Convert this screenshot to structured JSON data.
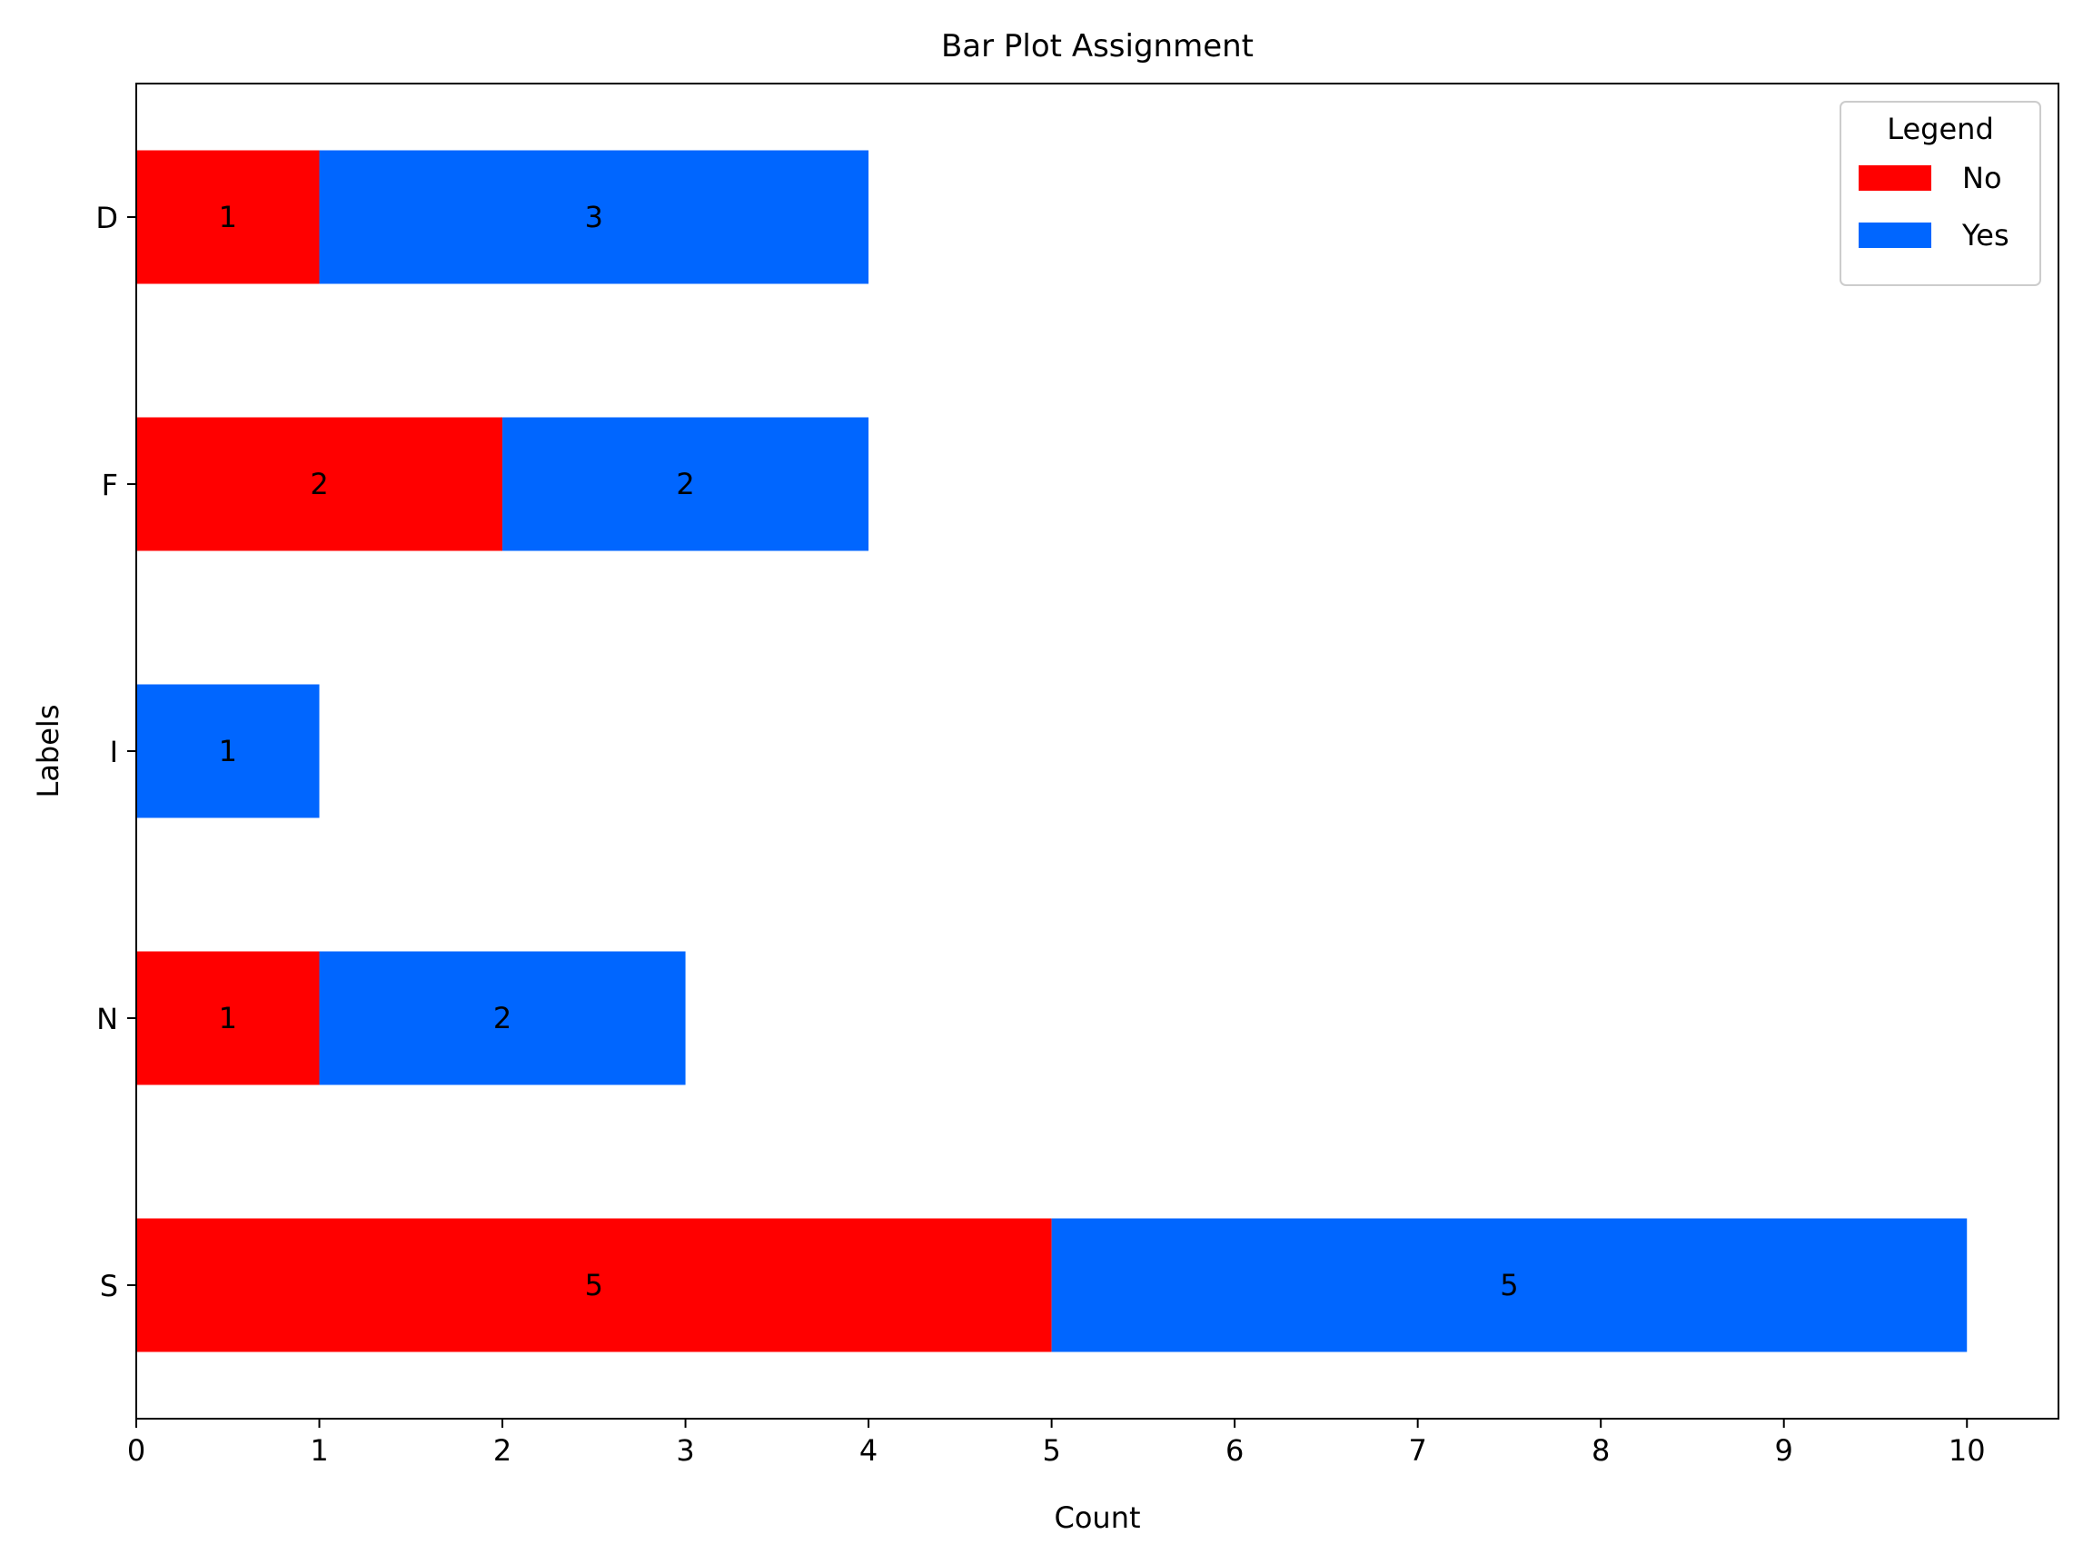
{
  "chart_data": {
    "type": "bar",
    "orientation": "horizontal",
    "stacked": true,
    "title": "Bar Plot Assignment",
    "xlabel": "Count",
    "ylabel": "Labels",
    "categories": [
      "S",
      "N",
      "I",
      "F",
      "D"
    ],
    "series": [
      {
        "name": "No",
        "color": "#ff0000",
        "values": [
          5,
          1,
          0,
          2,
          1
        ]
      },
      {
        "name": "Yes",
        "color": "#0066ff",
        "values": [
          5,
          2,
          1,
          2,
          3
        ]
      }
    ],
    "xlim": [
      0,
      10.5
    ],
    "xticks": [
      "0",
      "1",
      "2",
      "3",
      "4",
      "5",
      "6",
      "7",
      "8",
      "9",
      "10"
    ],
    "grid": false,
    "legend": {
      "title": "Legend",
      "position": "top-right"
    },
    "data_labels": true
  }
}
